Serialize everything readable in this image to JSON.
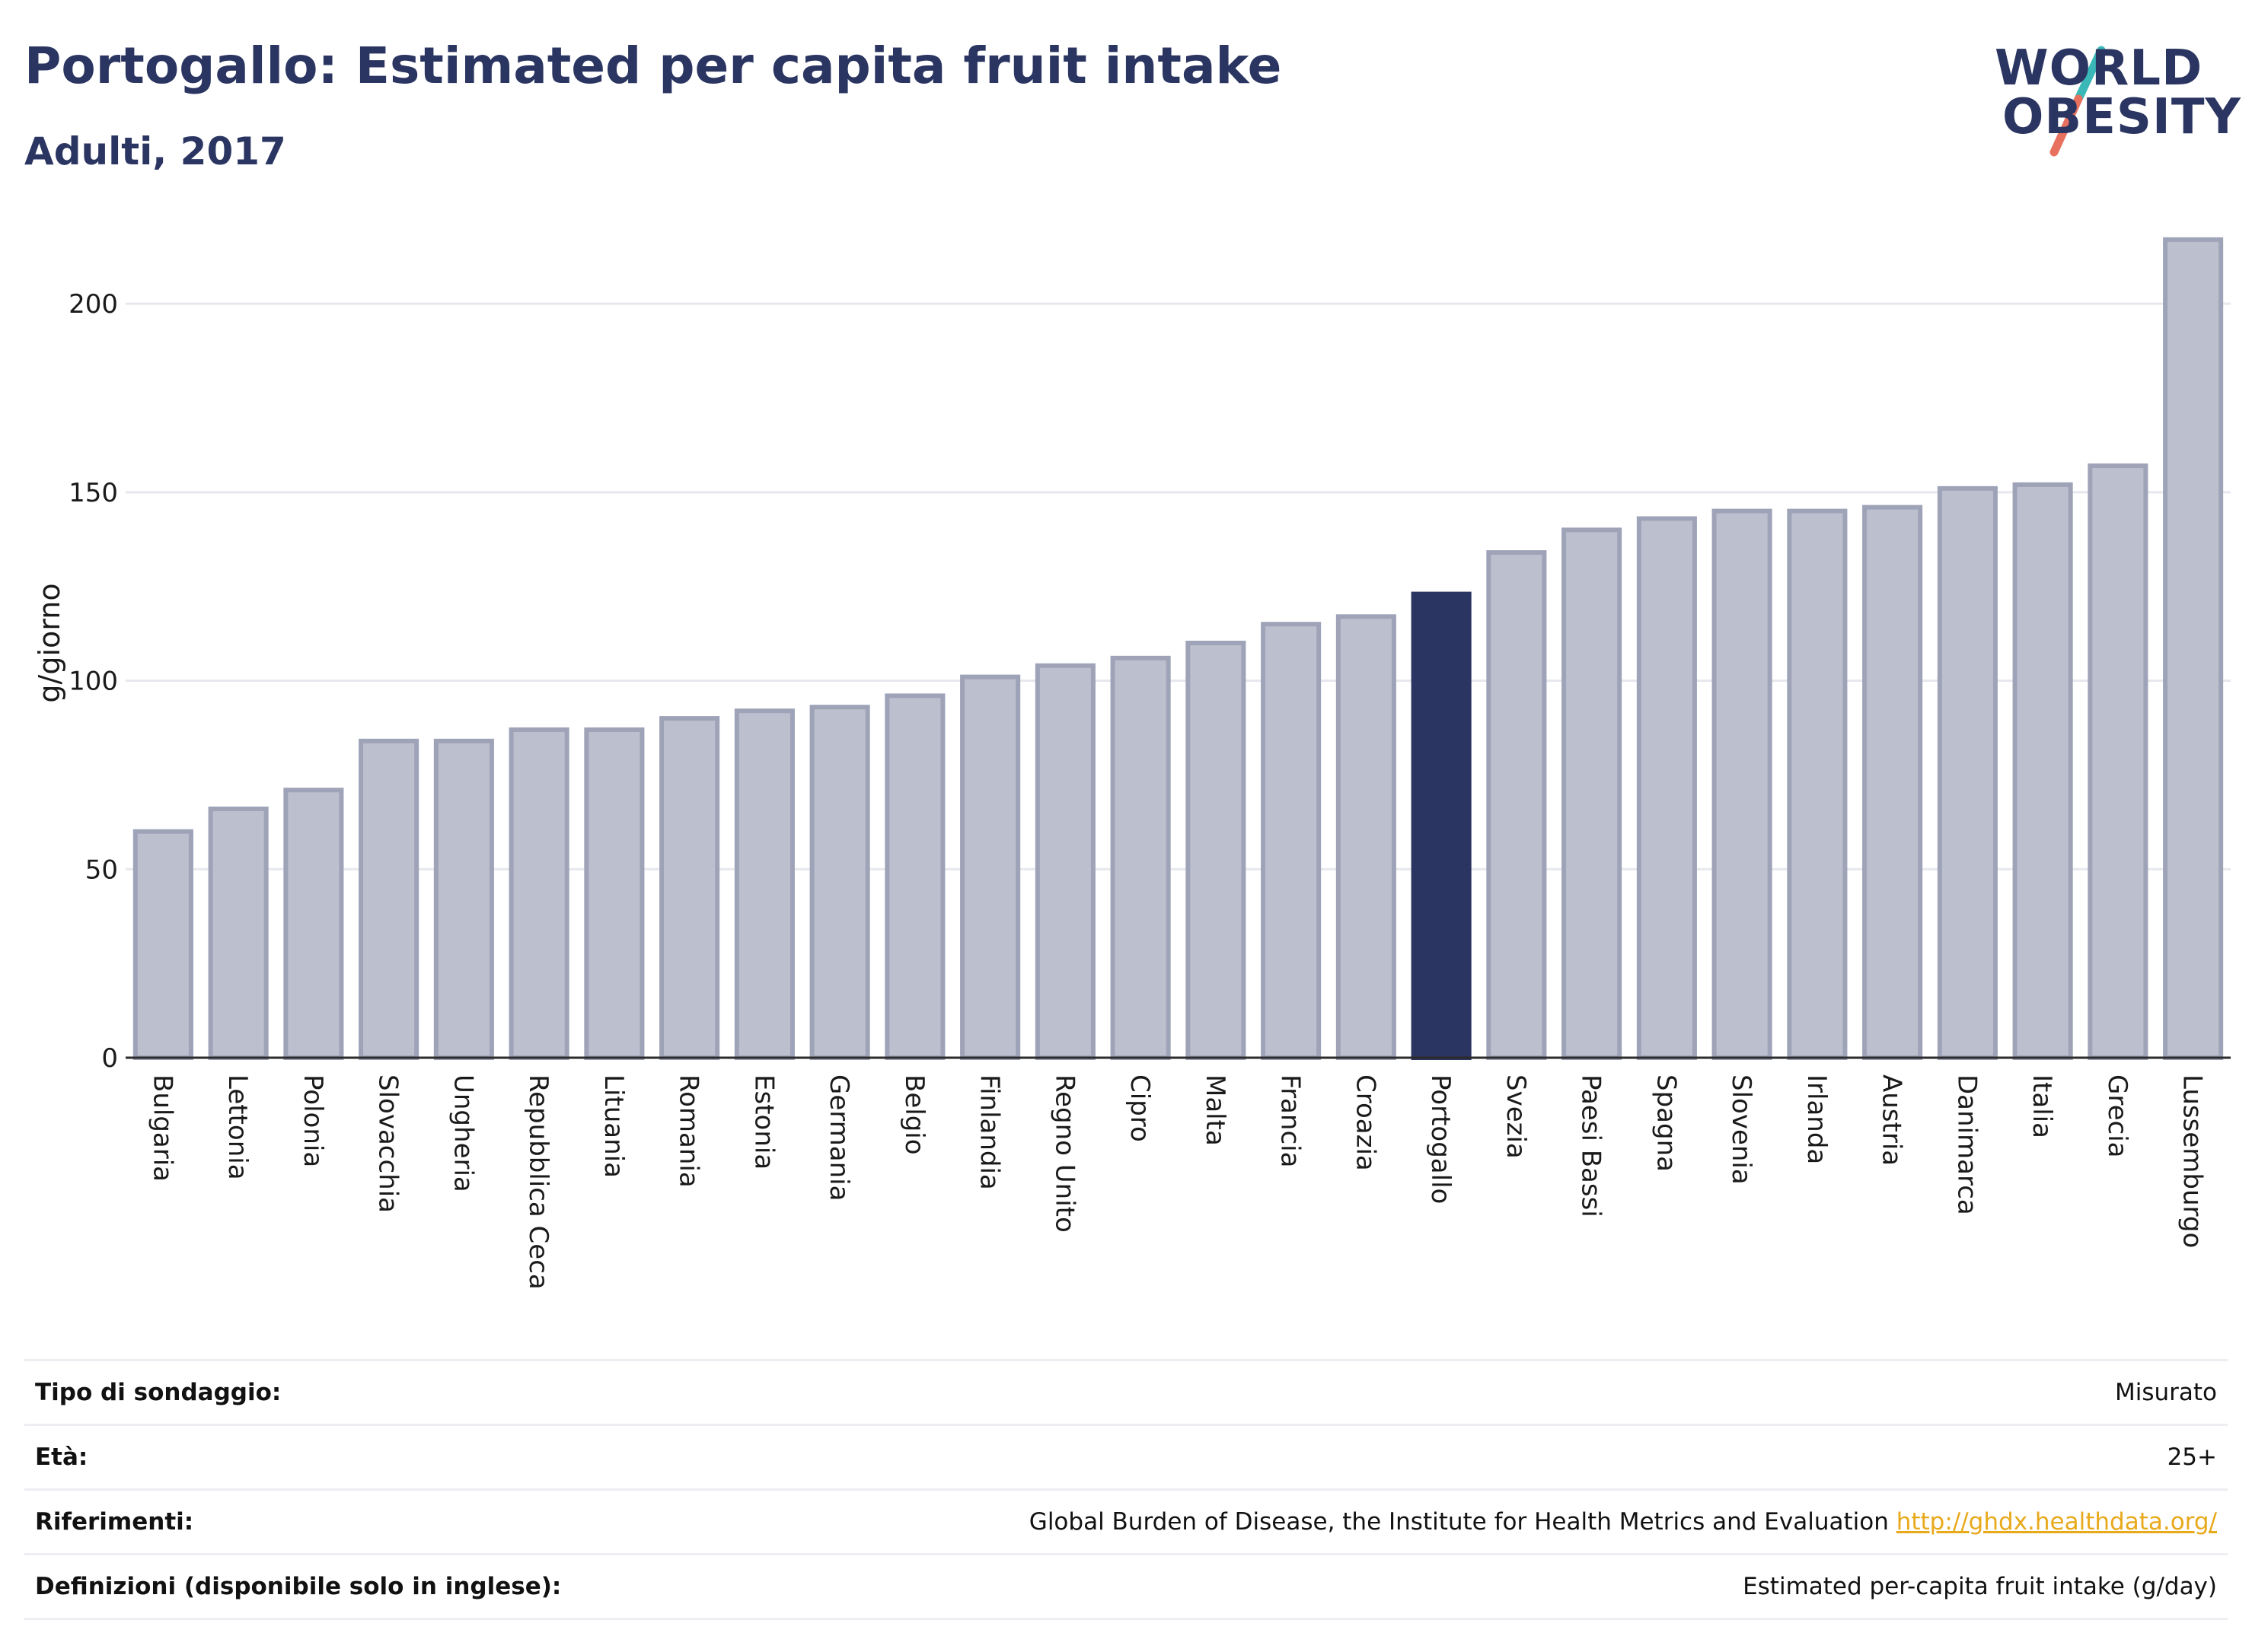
{
  "header": {
    "title": "Portogallo: Estimated per capita fruit intake",
    "subtitle": "Adulti, 2017"
  },
  "logo": {
    "line1": "WORLD",
    "line2": "OBESITY",
    "slash_colors": [
      "#3ab8b8",
      "#e8705f"
    ]
  },
  "colors": {
    "bar_default": "#bcc0ce",
    "bar_default_border": "#9ea3b8",
    "bar_highlight": "#2b3561",
    "text": "#2b3561",
    "link": "#e8a91c"
  },
  "chart_data": {
    "type": "bar",
    "ylabel": "g/giorno",
    "ylim": [
      0,
      220
    ],
    "yticks": [
      0,
      50,
      100,
      150,
      200
    ],
    "grid": true,
    "highlight": "Portogallo",
    "categories": [
      "Bulgaria",
      "Lettonia",
      "Polonia",
      "Slovacchia",
      "Ungheria",
      "Repubblica Ceca",
      "Lituania",
      "Romania",
      "Estonia",
      "Germania",
      "Belgio",
      "Finlandia",
      "Regno Unito",
      "Cipro",
      "Malta",
      "Francia",
      "Croazia",
      "Portogallo",
      "Svezia",
      "Paesi Bassi",
      "Spagna",
      "Slovenia",
      "Irlanda",
      "Austria",
      "Danimarca",
      "Italia",
      "Grecia",
      "Lussemburgo"
    ],
    "values": [
      60,
      66,
      71,
      84,
      84,
      87,
      87,
      90,
      92,
      93,
      96,
      101,
      104,
      106,
      110,
      115,
      117,
      123,
      134,
      140,
      143,
      145,
      145,
      146,
      151,
      152,
      157,
      217
    ]
  },
  "meta": [
    {
      "label": "Tipo di sondaggio:",
      "value": "Misurato",
      "link": ""
    },
    {
      "label": "Età:",
      "value": "25+",
      "link": ""
    },
    {
      "label": "Riferimenti:",
      "value": "Global Burden of Disease, the Institute for Health Metrics and Evaluation",
      "link": "http://ghdx.healthdata.org/"
    },
    {
      "label": "Definizioni (disponibile solo in inglese):",
      "value": "Estimated per-capita fruit intake (g/day)",
      "link": ""
    }
  ]
}
